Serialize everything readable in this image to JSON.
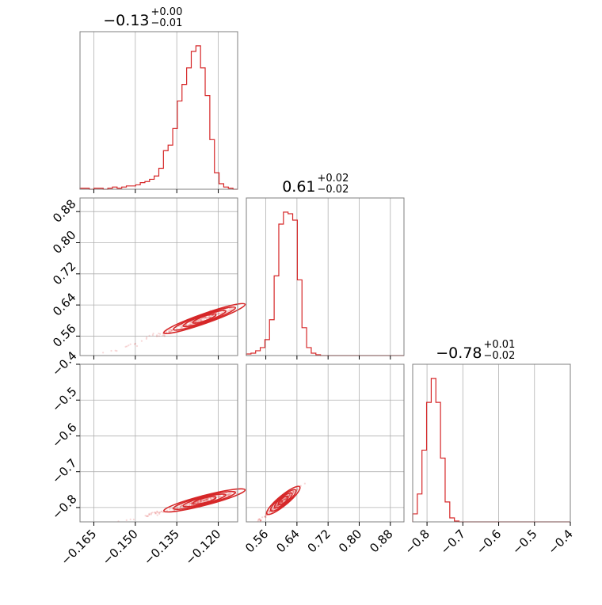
{
  "chart_data": {
    "type": "corner",
    "color": "#d62728",
    "grid": true,
    "parameters": [
      {
        "title": {
          "value": "−0.13",
          "plus": "+0.00",
          "minus": "−0.01"
        },
        "range": [
          -0.17,
          -0.113
        ],
        "ticks": [
          -0.165,
          -0.15,
          -0.135,
          -0.12
        ],
        "tick_labels": [
          "−0.165",
          "−0.150",
          "−0.135",
          "−0.120"
        ],
        "histogram": [
          1,
          1,
          0,
          1,
          1,
          0,
          1,
          2,
          1,
          2,
          3,
          3,
          4,
          6,
          7,
          9,
          12,
          19,
          35,
          40,
          55,
          80,
          95,
          110,
          125,
          130,
          110,
          85,
          45,
          15,
          5,
          2,
          1,
          0
        ]
      },
      {
        "title": {
          "value": "0.61",
          "plus": "+0.02",
          "minus": "−0.02"
        },
        "range": [
          0.51,
          0.915
        ],
        "ticks": [
          0.56,
          0.64,
          0.72,
          0.8,
          0.88
        ],
        "tick_labels": [
          "0.56",
          "0.64",
          "0.72",
          "0.80",
          "0.88"
        ],
        "histogram": [
          2,
          3,
          6,
          10,
          20,
          45,
          100,
          165,
          180,
          178,
          170,
          95,
          35,
          10,
          3,
          1,
          0,
          0,
          0,
          0,
          0,
          0,
          0,
          0,
          0,
          0,
          0,
          0,
          0,
          0,
          0,
          0,
          0,
          0
        ]
      },
      {
        "title": {
          "value": "−0.78",
          "plus": "+0.01",
          "minus": "−0.02"
        },
        "range": [
          -0.84,
          -0.4
        ],
        "ticks": [
          -0.8,
          -0.7,
          -0.6,
          -0.5,
          -0.4
        ],
        "tick_labels": [
          "−0.8",
          "−0.7",
          "−0.6",
          "−0.5",
          "−0.4"
        ],
        "histogram": [
          10,
          35,
          90,
          150,
          180,
          150,
          80,
          25,
          5,
          1,
          0,
          0,
          0,
          0,
          0,
          0,
          0,
          0,
          0,
          0,
          0,
          0,
          0,
          0,
          0,
          0,
          0,
          0,
          0,
          0,
          0,
          0,
          0,
          0
        ]
      }
    ],
    "joint": [
      {
        "x_param": 0,
        "y_param": 1,
        "center": [
          -0.125,
          0.605
        ],
        "sx": 0.007,
        "sy": 0.018,
        "slope": 2.5
      },
      {
        "x_param": 0,
        "y_param": 2,
        "center": [
          -0.125,
          -0.78
        ],
        "sx": 0.007,
        "sy": 0.015,
        "slope": 2.0
      },
      {
        "x_param": 1,
        "y_param": 2,
        "center": [
          0.605,
          -0.78
        ],
        "sx": 0.02,
        "sy": 0.015,
        "slope": 0.9
      }
    ]
  }
}
